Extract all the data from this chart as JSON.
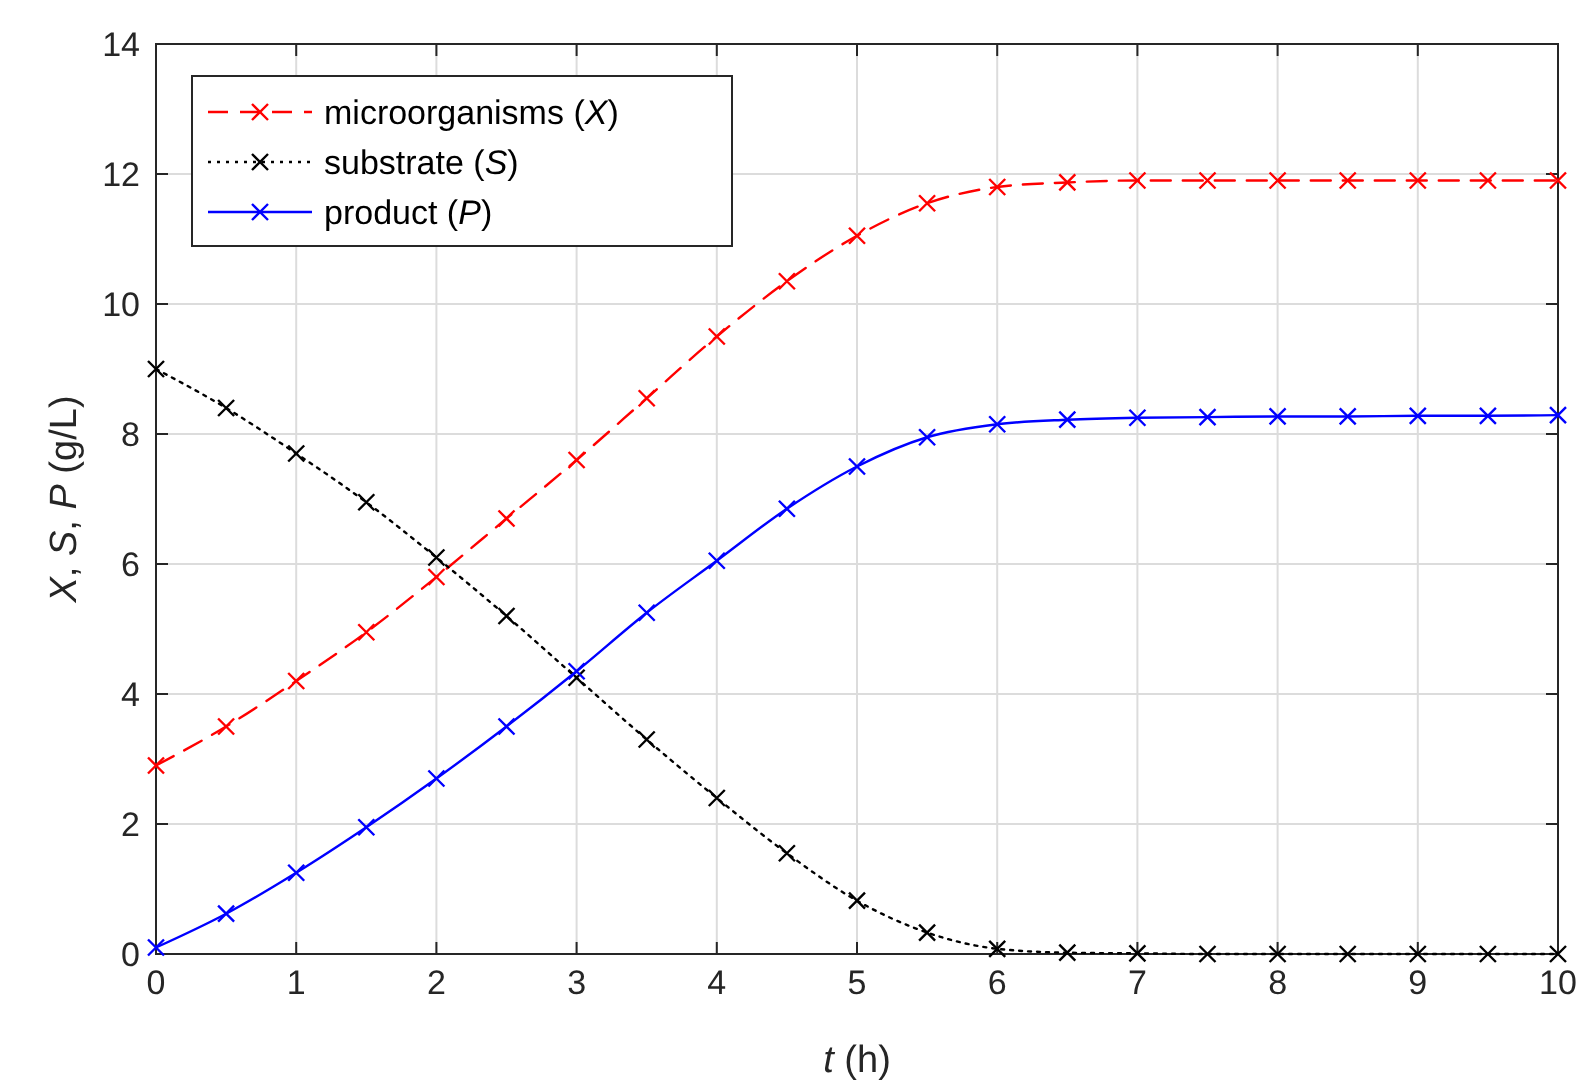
{
  "chart_data": {
    "type": "line",
    "xlabel": "t (h)",
    "ylabel": "X, S, P  (g/L)",
    "x": [
      0,
      0.5,
      1,
      1.5,
      2,
      2.5,
      3,
      3.5,
      4,
      4.5,
      5,
      5.5,
      6,
      6.5,
      7,
      7.5,
      8,
      8.5,
      9,
      9.5,
      10
    ],
    "series": [
      {
        "name": "microorganisms (X)",
        "color": "#ff0000",
        "line_style": "dashed",
        "values": [
          2.9,
          3.5,
          4.2,
          4.95,
          5.8,
          6.7,
          7.6,
          8.55,
          9.5,
          10.35,
          11.05,
          11.55,
          11.8,
          11.87,
          11.9,
          11.9,
          11.9,
          11.9,
          11.9,
          11.9,
          11.9
        ]
      },
      {
        "name": "substrate (S)",
        "color": "#000000",
        "line_style": "dotted",
        "values": [
          9.0,
          8.4,
          7.7,
          6.95,
          6.1,
          5.2,
          4.25,
          3.3,
          2.4,
          1.55,
          0.82,
          0.33,
          0.08,
          0.02,
          0.01,
          0,
          0,
          0,
          0,
          0,
          0
        ]
      },
      {
        "name": "product (P)",
        "color": "#0000ff",
        "line_style": "solid",
        "values": [
          0.1,
          0.62,
          1.25,
          1.95,
          2.7,
          3.5,
          4.35,
          5.25,
          6.05,
          6.85,
          7.5,
          7.95,
          8.15,
          8.22,
          8.25,
          8.26,
          8.27,
          8.27,
          8.28,
          8.28,
          8.29
        ]
      }
    ],
    "xlim": [
      0,
      10
    ],
    "xticks": [
      0,
      1,
      2,
      3,
      4,
      5,
      6,
      7,
      8,
      9,
      10
    ],
    "ylim": [
      0,
      14
    ],
    "yticks": [
      0,
      2,
      4,
      6,
      8,
      10,
      12,
      14
    ],
    "grid": true,
    "legend": "top left",
    "marker": "cross"
  }
}
